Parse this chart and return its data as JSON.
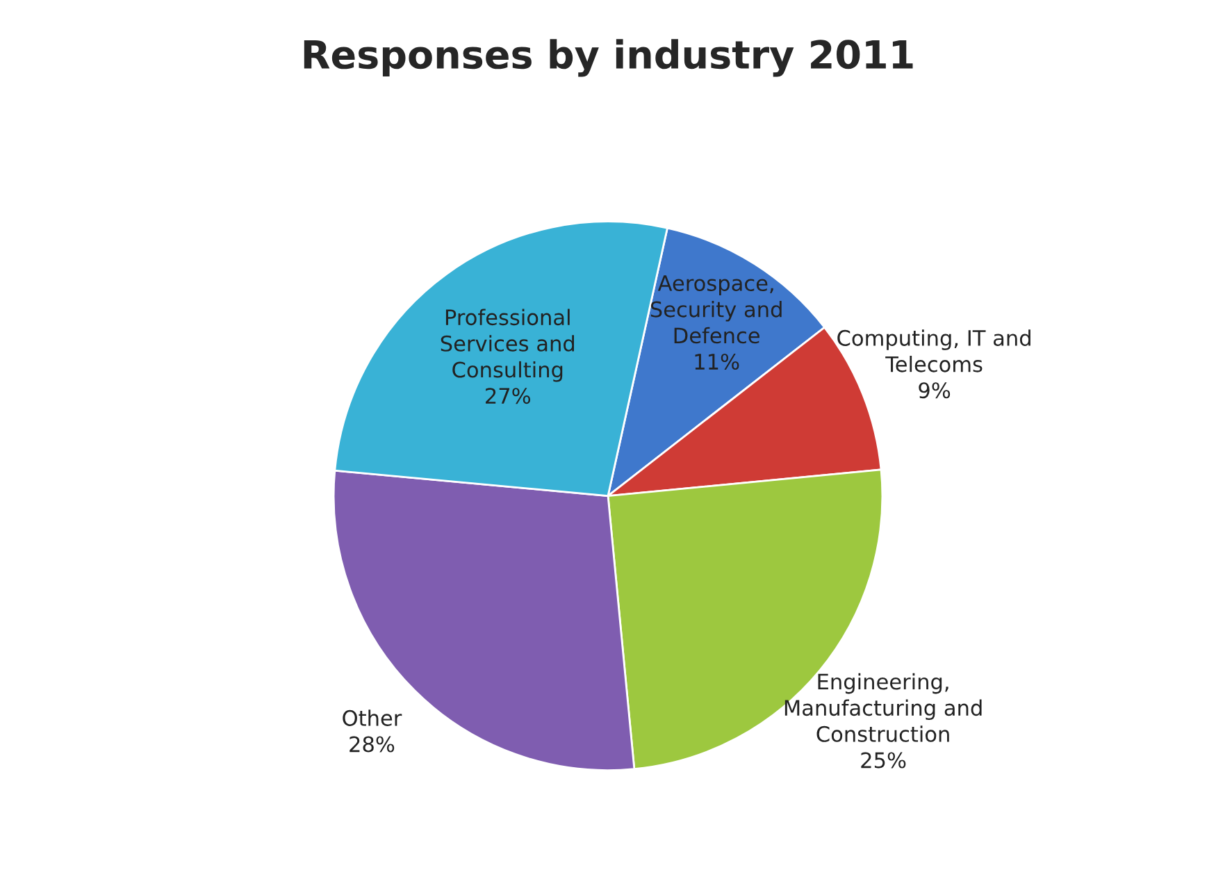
{
  "chart_data": {
    "type": "pie",
    "title": "Responses by industry 2011",
    "categories": [
      "Aerospace,\nSecurity and\nDefence",
      "Computing, IT and\nTelecoms",
      "Engineering,\nManufacturing and\nConstruction",
      "Other",
      "Professional\nServices and\nConsulting"
    ],
    "values": [
      11,
      9,
      25,
      28,
      27
    ],
    "value_labels": [
      "11%",
      "9%",
      "25%",
      "28%",
      "27%"
    ],
    "colors": [
      "#3f78cc",
      "#cf3b35",
      "#9dc83f",
      "#7f5db0",
      "#39b2d6"
    ]
  }
}
